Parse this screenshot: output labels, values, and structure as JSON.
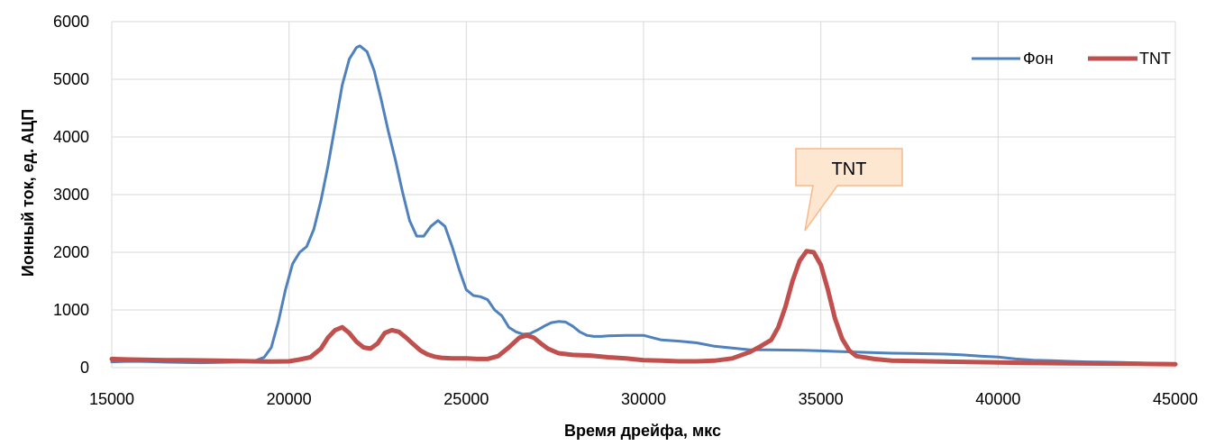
{
  "chart_data": {
    "type": "line",
    "xlabel": "Время дрейфа, мкс",
    "ylabel": "Ионный ток, ед. АЦП",
    "xlim": [
      15000,
      45000
    ],
    "ylim": [
      0,
      6000
    ],
    "xticks": [
      15000,
      20000,
      25000,
      30000,
      35000,
      40000,
      45000
    ],
    "yticks": [
      0,
      1000,
      2000,
      3000,
      4000,
      5000,
      6000
    ],
    "xtick_labels": [
      "15000",
      "20000",
      "25000",
      "30000",
      "35000",
      "40000",
      "45000"
    ],
    "ytick_labels": [
      "0",
      "1000",
      "2000",
      "3000",
      "4000",
      "5000",
      "6000"
    ],
    "grid": true,
    "legend_position": "top-right",
    "annotation": "TNT",
    "series": [
      {
        "name": "Фон",
        "color": "#4F81BD",
        "x": [
          15000,
          15500,
          16000,
          16500,
          17000,
          17500,
          18000,
          18500,
          19000,
          19300,
          19500,
          19700,
          19900,
          20100,
          20300,
          20500,
          20700,
          20900,
          21100,
          21300,
          21500,
          21700,
          21900,
          22000,
          22200,
          22400,
          22600,
          22800,
          23000,
          23200,
          23400,
          23600,
          23800,
          24000,
          24200,
          24400,
          24600,
          24800,
          25000,
          25200,
          25400,
          25600,
          25800,
          26000,
          26200,
          26400,
          26600,
          26800,
          27000,
          27200,
          27400,
          27600,
          27800,
          28000,
          28200,
          28400,
          28600,
          28800,
          29000,
          29500,
          30000,
          30500,
          31000,
          31500,
          32000,
          32500,
          33000,
          33500,
          34000,
          34500,
          35000,
          35500,
          36000,
          36500,
          37000,
          37500,
          38000,
          38500,
          39000,
          39500,
          40000,
          40500,
          41000,
          41500,
          42000,
          42500,
          43000,
          43500,
          44000,
          44500,
          45000
        ],
        "values": [
          100,
          110,
          105,
          95,
          90,
          85,
          90,
          95,
          110,
          180,
          350,
          800,
          1350,
          1800,
          2000,
          2100,
          2400,
          2900,
          3500,
          4200,
          4900,
          5350,
          5550,
          5580,
          5480,
          5150,
          4650,
          4100,
          3600,
          3050,
          2550,
          2280,
          2280,
          2450,
          2550,
          2450,
          2100,
          1700,
          1350,
          1250,
          1230,
          1180,
          1000,
          900,
          700,
          620,
          580,
          590,
          650,
          720,
          780,
          800,
          790,
          720,
          620,
          560,
          540,
          540,
          550,
          560,
          560,
          480,
          460,
          430,
          370,
          340,
          310,
          310,
          305,
          300,
          290,
          280,
          270,
          260,
          250,
          245,
          240,
          235,
          220,
          200,
          185,
          150,
          130,
          120,
          110,
          100,
          95,
          90,
          80,
          75,
          70
        ]
      },
      {
        "name": "TNT",
        "color": "#C0504D",
        "x": [
          15000,
          15500,
          16000,
          16500,
          17000,
          17500,
          18000,
          18500,
          19000,
          19500,
          20000,
          20300,
          20600,
          20900,
          21100,
          21300,
          21500,
          21700,
          21900,
          22100,
          22300,
          22500,
          22700,
          22900,
          23100,
          23300,
          23500,
          23700,
          23900,
          24100,
          24300,
          24600,
          25000,
          25300,
          25600,
          25900,
          26200,
          26500,
          26700,
          26900,
          27100,
          27300,
          27600,
          28000,
          28500,
          29000,
          29500,
          30000,
          30500,
          31000,
          31500,
          32000,
          32500,
          33000,
          33300,
          33600,
          33800,
          34000,
          34200,
          34400,
          34600,
          34800,
          35000,
          35200,
          35400,
          35600,
          35800,
          36000,
          36500,
          37000,
          38000,
          39000,
          40000,
          41000,
          42000,
          43000,
          44000,
          45000
        ],
        "values": [
          150,
          140,
          135,
          130,
          130,
          125,
          120,
          115,
          110,
          105,
          110,
          140,
          180,
          330,
          520,
          650,
          700,
          600,
          450,
          350,
          330,
          420,
          600,
          650,
          620,
          520,
          410,
          300,
          230,
          190,
          170,
          160,
          160,
          150,
          150,
          200,
          350,
          520,
          560,
          520,
          420,
          330,
          250,
          220,
          210,
          180,
          160,
          130,
          120,
          110,
          110,
          120,
          160,
          270,
          370,
          480,
          700,
          1050,
          1500,
          1850,
          2020,
          2000,
          1780,
          1350,
          850,
          500,
          300,
          200,
          150,
          120,
          110,
          100,
          90,
          80,
          75,
          70,
          65,
          60
        ]
      }
    ]
  }
}
